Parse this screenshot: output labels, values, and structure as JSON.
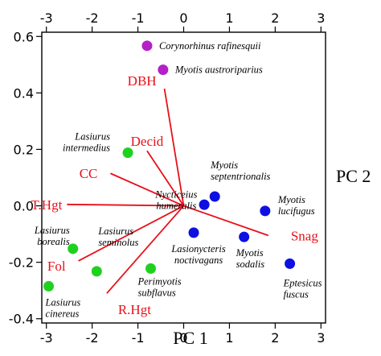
{
  "chart_data": {
    "type": "scatter",
    "title": "",
    "xlabel": "PC 1",
    "ylabel": "PC 2",
    "xlim": [
      -3.1,
      3.1
    ],
    "ylim": [
      -0.415,
      0.615
    ],
    "bottom_ticks": [
      "-3",
      "-2",
      "-1",
      "0",
      "1",
      "2",
      "3"
    ],
    "top_ticks": [
      "-3",
      "-2",
      "-1",
      "0",
      "1",
      "2",
      "3"
    ],
    "left_ticks": [
      "0.6",
      "0.4",
      "0.2",
      "0.0",
      "-0.2",
      "-0.4"
    ],
    "grid": false,
    "colors": {
      "vector": "#e8101a",
      "purple": "#b41fc8",
      "green": "#1fd11f",
      "blue": "#0d10e0"
    },
    "points": [
      {
        "label": [
          "Corynorhinus rafinesquii"
        ],
        "x": -0.8,
        "y": 0.567,
        "group": "purple",
        "anchor": "start",
        "dx": 15,
        "dy": 4
      },
      {
        "label": [
          "Myotis austroriparius"
        ],
        "x": -0.45,
        "y": 0.482,
        "group": "purple",
        "anchor": "start",
        "dx": 15,
        "dy": 4
      },
      {
        "label": [
          "Lasiurus",
          "intermedius"
        ],
        "x": -1.22,
        "y": 0.188,
        "group": "green",
        "anchor": "end",
        "dx": -22,
        "dy": -16
      },
      {
        "label": [
          "Lasiurus",
          "borealis"
        ],
        "x": -2.42,
        "y": -0.152,
        "group": "green",
        "anchor": "end",
        "dx": -4,
        "dy": -19
      },
      {
        "label": [
          "Lasiurus",
          "seminolus"
        ],
        "x": -1.9,
        "y": -0.232,
        "group": "green",
        "anchor": "start",
        "dx": 2,
        "dy": -46
      },
      {
        "label": [
          "Perimyotis",
          "subflavus"
        ],
        "x": -0.72,
        "y": -0.222,
        "group": "green",
        "anchor": "start",
        "dx": -16,
        "dy": 20
      },
      {
        "label": [
          "Lasiurus",
          "cinereus"
        ],
        "x": -2.95,
        "y": -0.285,
        "group": "green",
        "anchor": "start",
        "dx": -4,
        "dy": 24
      },
      {
        "label": [
          "Myotis",
          "septentrionalis"
        ],
        "x": 0.45,
        "y": 0.004,
        "group": "blue",
        "anchor": "start",
        "dx": 8,
        "dy": -45
      },
      {
        "label": [],
        "x": 0.68,
        "y": 0.033,
        "group": "blue",
        "anchor": "start",
        "dx": 0,
        "dy": 0
      },
      {
        "label": [
          "Myotis",
          "lucifugus"
        ],
        "x": 1.78,
        "y": -0.018,
        "group": "blue",
        "anchor": "start",
        "dx": 16,
        "dy": -10
      },
      {
        "label": [
          "Lasionycteris",
          "noctivagans"
        ],
        "x": 0.22,
        "y": -0.095,
        "group": "blue",
        "anchor": "middle",
        "dx": 6,
        "dy": 24
      },
      {
        "label": [
          "Myotis",
          "sodalis"
        ],
        "x": 1.32,
        "y": -0.11,
        "group": "blue",
        "anchor": "start",
        "dx": -10,
        "dy": 24
      },
      {
        "label": [
          "Eptesicus",
          "fuscus"
        ],
        "x": 2.32,
        "y": -0.205,
        "group": "blue",
        "anchor": "start",
        "dx": -8,
        "dy": 28
      }
    ],
    "vectors": [
      {
        "label": "DBH",
        "x": -0.42,
        "y": 0.415,
        "dx": -10,
        "dy": -10
      },
      {
        "label": "Decid",
        "x": -0.8,
        "y": 0.195,
        "dx": 0,
        "dy": -12
      },
      {
        "label": "CC",
        "x": -1.6,
        "y": 0.115,
        "dx": -16,
        "dy": 0
      },
      {
        "label": "T.Hgt",
        "x": -2.55,
        "y": 0.005,
        "dx": -6,
        "dy": 0
      },
      {
        "label": "Fol",
        "x": -2.3,
        "y": -0.195,
        "dx": -16,
        "dy": 6
      },
      {
        "label": "R.Hgt",
        "x": -1.68,
        "y": -0.31,
        "dx": 14,
        "dy": 20
      },
      {
        "label": "Snag",
        "x": 1.85,
        "y": -0.105,
        "dx": 28,
        "dy": 0
      }
    ],
    "nycticeius": {
      "label": [
        "Nycticeius",
        "humeralis"
      ],
      "x": -0.6,
      "y": 0.028
    }
  }
}
